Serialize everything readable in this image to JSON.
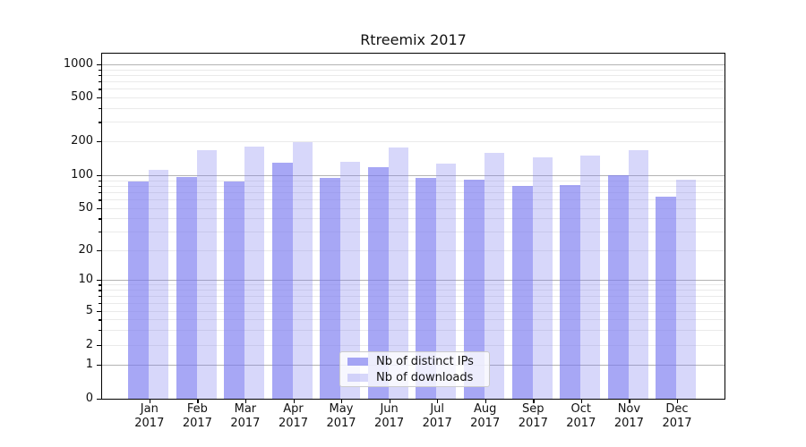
{
  "title": "Rtreemix 2017",
  "legend": {
    "items": [
      {
        "label": "Nb of distinct IPs",
        "color": "#a8a8f3"
      },
      {
        "label": "Nb of downloads",
        "color": "#d8d8fa"
      }
    ]
  },
  "y_axis": {
    "tick_labels": [
      "0",
      "1",
      "2",
      "5",
      "10",
      "20",
      "50",
      "100",
      "200",
      "500",
      "1000"
    ]
  },
  "x_axis": {
    "months": [
      "Jan",
      "Feb",
      "Mar",
      "Apr",
      "May",
      "Jun",
      "Jul",
      "Aug",
      "Sep",
      "Oct",
      "Nov",
      "Dec"
    ],
    "year": "2017"
  },
  "colors": {
    "bar_dark_rgba": "rgba(121,121,240,0.66)",
    "bar_light_rgba": "rgba(121,121,240,0.30)",
    "grid_major": "#b3b3b3",
    "grid_minor": "#eaeaea"
  },
  "chart_data": {
    "type": "bar",
    "title": "Rtreemix 2017",
    "categories": [
      "Jan 2017",
      "Feb 2017",
      "Mar 2017",
      "Apr 2017",
      "May 2017",
      "Jun 2017",
      "Jul 2017",
      "Aug 2017",
      "Sep 2017",
      "Oct 2017",
      "Nov 2017",
      "Dec 2017"
    ],
    "series": [
      {
        "name": "Nb of distinct IPs",
        "values": [
          87,
          96,
          87,
          130,
          94,
          118,
          94,
          91,
          80,
          81,
          100,
          64
        ]
      },
      {
        "name": "Nb of downloads",
        "values": [
          112,
          168,
          180,
          198,
          132,
          175,
          126,
          158,
          145,
          150,
          168,
          91
        ]
      }
    ],
    "xlabel": "",
    "ylabel": "",
    "yscale": "symlog",
    "y_ticks": [
      0,
      1,
      2,
      5,
      10,
      20,
      50,
      100,
      200,
      500,
      1000
    ],
    "ylim": [
      0,
      1270
    ],
    "grid": "horizontal",
    "legend_position": "lower center"
  }
}
